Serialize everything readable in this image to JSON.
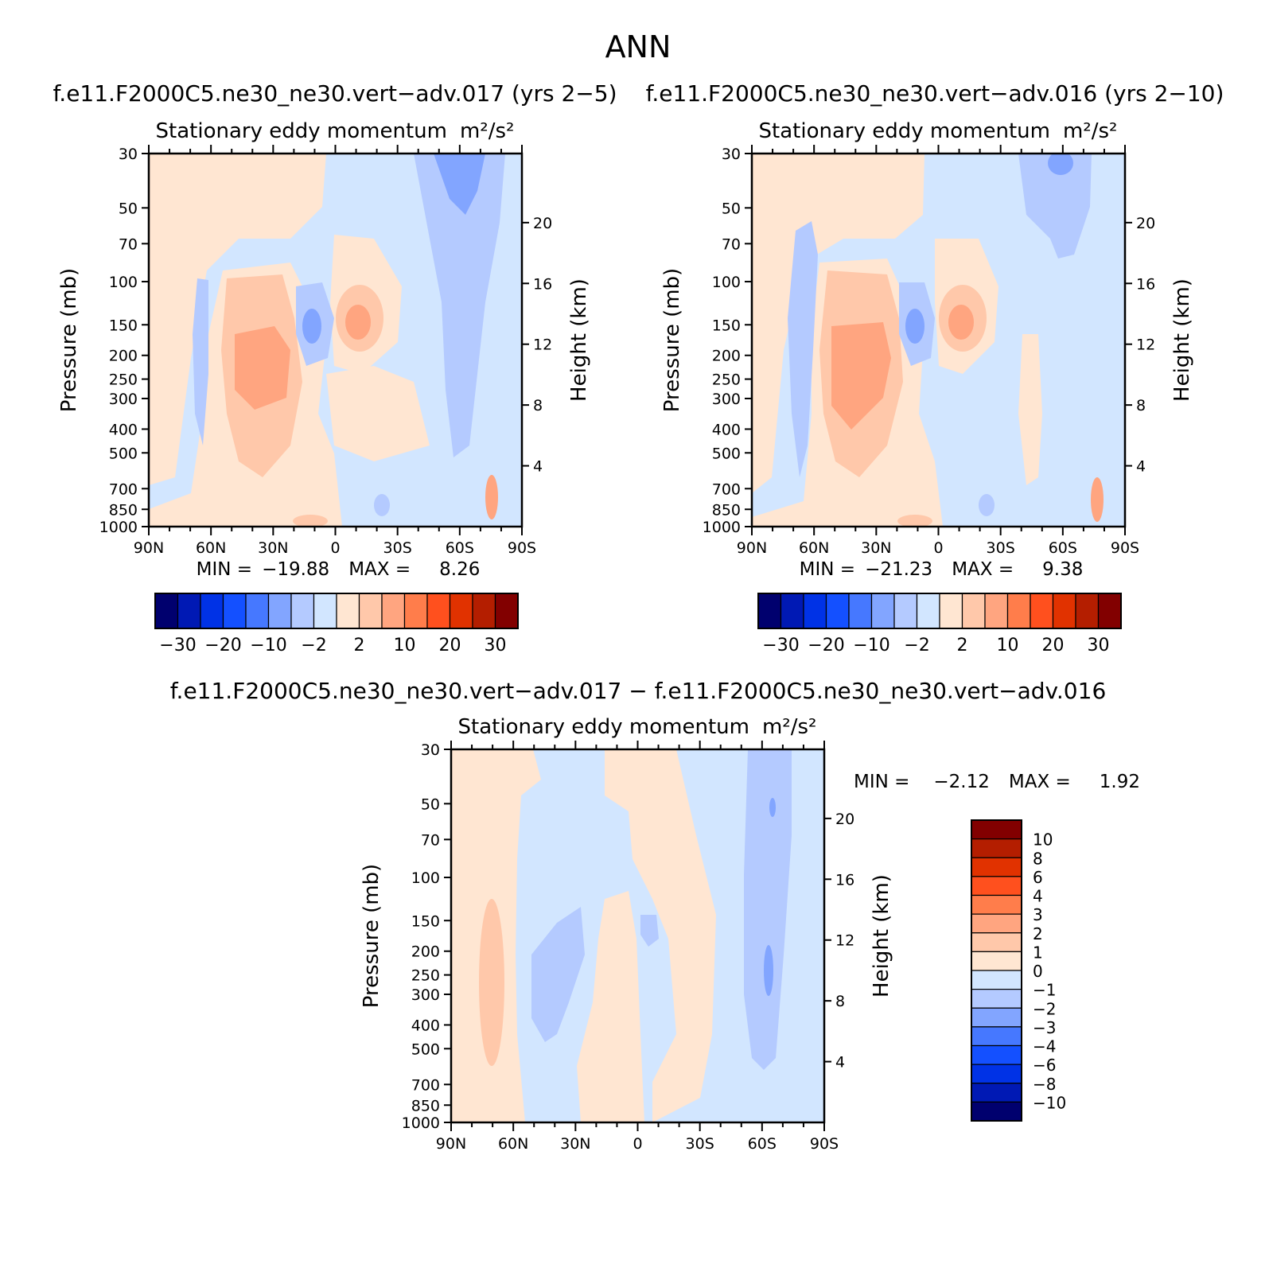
{
  "figure": {
    "title": "ANN"
  },
  "panel_common": {
    "subtitle": "Stationary eddy momentum",
    "units": "m²/s²",
    "ylabel_left": "Pressure (mb)",
    "ylabel_right": "Height (km)",
    "min_label": "MIN =",
    "max_label": "MAX ="
  },
  "colors": {
    "top_palette": [
      "#00006e",
      "#0019b4",
      "#0032e6",
      "#1450ff",
      "#4678ff",
      "#82a5ff",
      "#b4caff",
      "#d2e6ff",
      "#ffe6d2",
      "#ffc8aa",
      "#ffa580",
      "#ff7d4b",
      "#ff501e",
      "#e13200",
      "#b41e00",
      "#820000"
    ],
    "diff_palette": [
      "#00006e",
      "#0019b4",
      "#0032e6",
      "#1450ff",
      "#4678ff",
      "#82a5ff",
      "#b4caff",
      "#d2e6ff",
      "#ffe6d2",
      "#ffc8aa",
      "#ffa580",
      "#ff7d4b",
      "#ff501e",
      "#e13200",
      "#b41e00",
      "#820000"
    ]
  },
  "colorbars": {
    "top_labels": [
      "−30",
      "−20",
      "−10",
      "−2",
      "2",
      "10",
      "20",
      "30"
    ],
    "diff_labels": [
      "10",
      "8",
      "6",
      "4",
      "3",
      "2",
      "1",
      "0",
      "−1",
      "−2",
      "−3",
      "−4",
      "−6",
      "−8",
      "−10"
    ]
  },
  "chart_data": [
    {
      "type": "heatmap",
      "title": "f.e11.F2000C5.ne30_ne30.vert−adv.017 (yrs 2−5)",
      "subtitle": "Stationary eddy momentum  m²/s²",
      "x_ticks": [
        "90N",
        "60N",
        "30N",
        "0",
        "30S",
        "60S",
        "90S"
      ],
      "y_ticks": [
        "30",
        "50",
        "70",
        "100",
        "150",
        "200",
        "250",
        "300",
        "400",
        "500",
        "700",
        "850",
        "1000"
      ],
      "y_right_ticks": [
        "20",
        "16",
        "12",
        "8",
        "4"
      ],
      "ylabel": "Pressure (mb)",
      "ylabel_right": "Height (km)",
      "min": "−19.88",
      "max": "8.26",
      "features": [
        {
          "lat": 45,
          "p": 250,
          "value": 6
        },
        {
          "lat": 0,
          "p": 150,
          "value": 5
        },
        {
          "lat": 15,
          "p": 150,
          "value": -12
        },
        {
          "lat": -60,
          "p": 40,
          "value": -11
        },
        {
          "lat": -55,
          "p": 200,
          "value": -6
        }
      ]
    },
    {
      "type": "heatmap",
      "title": "f.e11.F2000C5.ne30_ne30.vert−adv.016 (yrs 2−10)",
      "subtitle": "Stationary eddy momentum  m²/s²",
      "x_ticks": [
        "90N",
        "60N",
        "30N",
        "0",
        "30S",
        "60S",
        "90S"
      ],
      "y_ticks": [
        "30",
        "50",
        "70",
        "100",
        "150",
        "200",
        "250",
        "300",
        "400",
        "500",
        "700",
        "850",
        "1000"
      ],
      "y_right_ticks": [
        "20",
        "16",
        "12",
        "8",
        "4"
      ],
      "ylabel": "Pressure (mb)",
      "ylabel_right": "Height (km)",
      "min": "−21.23",
      "max": "9.38",
      "features": [
        {
          "lat": 45,
          "p": 250,
          "value": 7
        },
        {
          "lat": 0,
          "p": 150,
          "value": 6
        },
        {
          "lat": 15,
          "p": 150,
          "value": -13
        },
        {
          "lat": -55,
          "p": 35,
          "value": -9
        },
        {
          "lat": 65,
          "p": 200,
          "value": -6
        }
      ]
    },
    {
      "type": "heatmap",
      "title": "f.e11.F2000C5.ne30_ne30.vert−adv.017 − f.e11.F2000C5.ne30_ne30.vert−adv.016",
      "subtitle": "Stationary eddy momentum  m²/s²",
      "x_ticks": [
        "90N",
        "60N",
        "30N",
        "0",
        "30S",
        "60S",
        "90S"
      ],
      "y_ticks": [
        "30",
        "50",
        "70",
        "100",
        "150",
        "200",
        "250",
        "300",
        "400",
        "500",
        "700",
        "850",
        "1000"
      ],
      "y_right_ticks": [
        "20",
        "16",
        "12",
        "8",
        "4"
      ],
      "ylabel": "Pressure (mb)",
      "ylabel_right": "Height (km)",
      "min": "−2.12",
      "max": "1.92",
      "features": [
        {
          "lat": 72,
          "p": 250,
          "value": 1.5
        },
        {
          "lat": 30,
          "p": 250,
          "value": -1.5
        },
        {
          "lat": -10,
          "p": 150,
          "value": -1.5
        },
        {
          "lat": -62,
          "p": 250,
          "value": -2.1
        }
      ]
    }
  ]
}
